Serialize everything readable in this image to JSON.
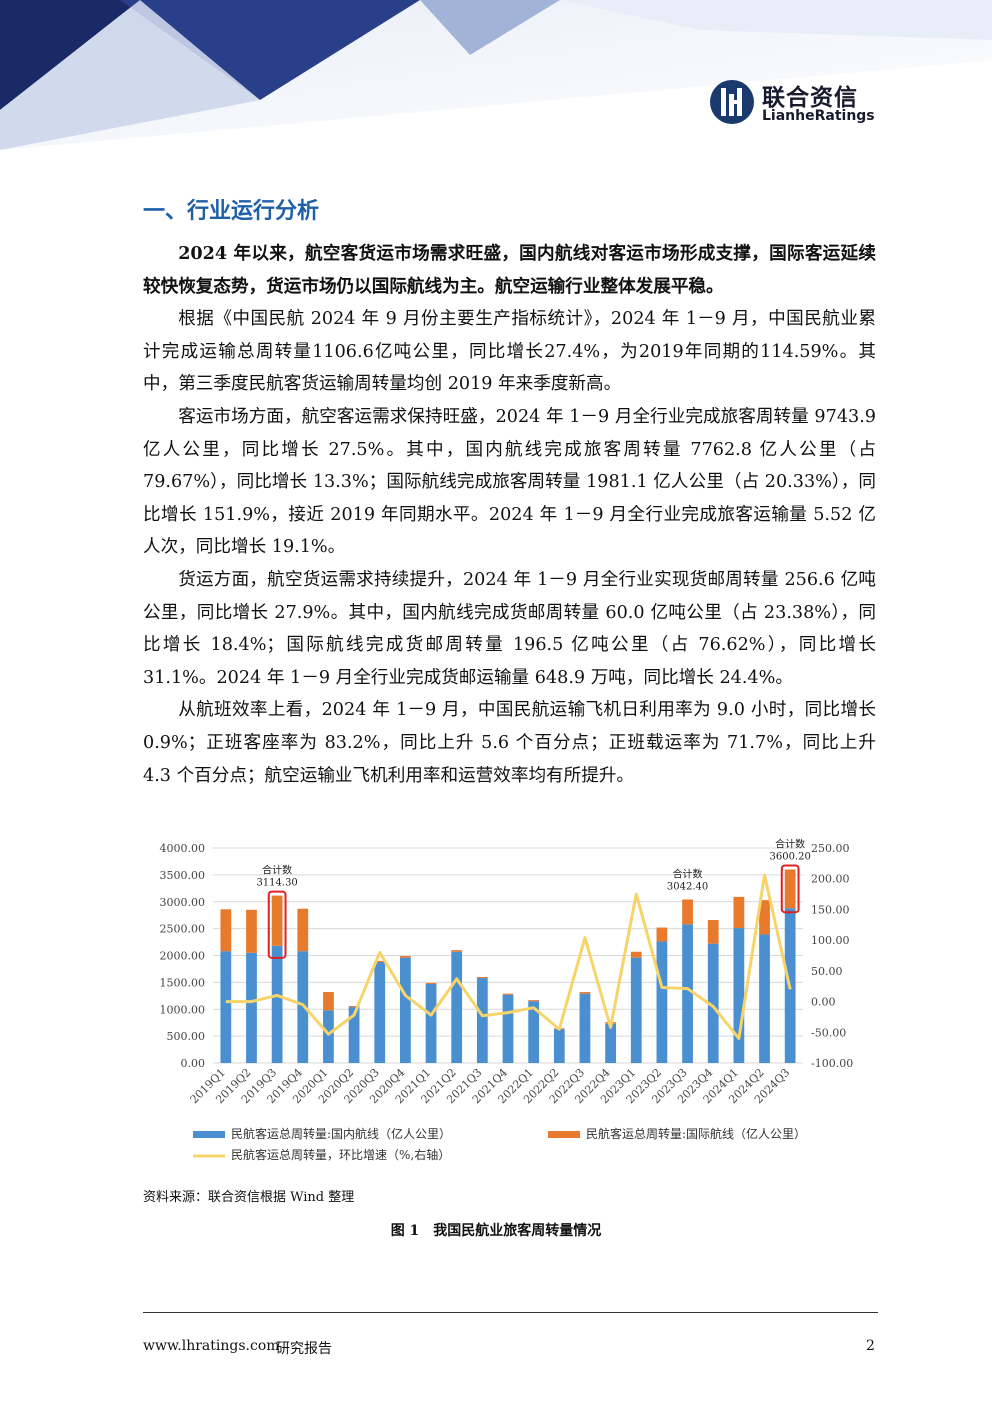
{
  "logo": {
    "name_cn": "联合资信",
    "name_en": "LianheRatings"
  },
  "section_title": "一、行业运行分析",
  "paragraphs": [
    {
      "bold": true,
      "text": "2024 年以来，航空客货运市场需求旺盛，国内航线对客运市场形成支撑，国际客运延续较快恢复态势，货运市场仍以国际航线为主。航空运输行业整体发展平稳。"
    },
    {
      "bold": false,
      "text": "根据《中国民航 2024 年 9 月份主要生产指标统计》，2024 年 1－9 月，中国民航业累计完成运输总周转量1106.6亿吨公里，同比增长27.4%，为2019年同期的114.59%。其中，第三季度民航客货运输周转量均创 2019 年来季度新高。"
    },
    {
      "bold": false,
      "text": "客运市场方面，航空客运需求保持旺盛，2024 年 1－9 月全行业完成旅客周转量 9743.9 亿人公里，同比增长 27.5%。其中，国内航线完成旅客周转量 7762.8 亿人公里（占 79.67%），同比增长 13.3%；国际航线完成旅客周转量 1981.1 亿人公里（占 20.33%），同比增长 151.9%，接近 2019 年同期水平。2024 年 1－9 月全行业完成旅客运输量 5.52 亿人次，同比增长 19.1%。"
    },
    {
      "bold": false,
      "text": "货运方面，航空货运需求持续提升，2024 年 1－9 月全行业实现货邮周转量 256.6 亿吨公里，同比增长 27.9%。其中，国内航线完成货邮周转量 60.0 亿吨公里（占 23.38%），同比增长 18.4%；国际航线完成货邮周转量 196.5 亿吨公里（占 76.62%），同比增长 31.1%。2024 年 1－9 月全行业完成货邮运输量 648.9 万吨，同比增长 24.4%。"
    },
    {
      "bold": false,
      "text": "从航班效率上看，2024 年 1－9 月，中国民航运输飞机日利用率为 9.0 小时，同比增长 0.9%；正班客座率为 83.2%，同比上升 5.6 个百分点；正班载运率为 71.7%，同比上升 4.3 个百分点；航空运输业飞机利用率和运营效率均有所提升。"
    }
  ],
  "chart_data": {
    "type": "bar",
    "stacked": true,
    "categories": [
      "2019Q1",
      "2019Q2",
      "2019Q3",
      "2019Q4",
      "2020Q1",
      "2020Q2",
      "2020Q3",
      "2020Q4",
      "2021Q1",
      "2021Q2",
      "2021Q3",
      "2021Q4",
      "2022Q1",
      "2022Q2",
      "2022Q3",
      "2022Q4",
      "2023Q1",
      "2023Q2",
      "2023Q3",
      "2023Q4",
      "2024Q1",
      "2024Q2",
      "2024Q3"
    ],
    "series": [
      {
        "name": "民航客运总周转量:国内航线（亿人公里）",
        "axis": "left",
        "color": "#4a90d0",
        "values": [
          2080,
          2050,
          2180,
          2080,
          980,
          1040,
          1880,
          1960,
          1470,
          2070,
          1580,
          1270,
          1150,
          630,
          1290,
          730,
          1960,
          2260,
          2580,
          2220,
          2510,
          2390,
          2880
        ]
      },
      {
        "name": "民航客运总周转量:国际航线（亿人公里）",
        "axis": "left",
        "color": "#e87a2e",
        "values": [
          780,
          800,
          934,
          790,
          340,
          20,
          20,
          30,
          20,
          30,
          20,
          20,
          20,
          15,
          30,
          30,
          110,
          260,
          462,
          440,
          580,
          640,
          720
        ]
      },
      {
        "name": "民航客运总周转量，环比增速（%,右轴）",
        "axis": "right",
        "type": "line",
        "color": "#f7d46a",
        "values": [
          0,
          0,
          10,
          -5,
          -53,
          -22,
          80,
          10,
          -22,
          37,
          -23,
          -18,
          -10,
          -45,
          104,
          -42,
          175,
          23,
          21,
          -8,
          -60,
          206,
          20
        ]
      }
    ],
    "annotations": [
      {
        "label": "合计数",
        "value": "3114.30",
        "category": "2019Q3"
      },
      {
        "label": "合计数",
        "value": "3042.40",
        "category": "2023Q3"
      },
      {
        "label": "合计数",
        "value": "3600.20",
        "category": "2024Q3"
      }
    ],
    "highlight_boxes": [
      "2019Q3",
      "2024Q3"
    ],
    "y_left": {
      "min": 0,
      "max": 4000,
      "ticks": [
        "0.00",
        "500.00",
        "1000.00",
        "1500.00",
        "2000.00",
        "2500.00",
        "3000.00",
        "3500.00",
        "4000.00"
      ]
    },
    "y_right": {
      "min": -100,
      "max": 250,
      "ticks": [
        "-100.00",
        "-50.00",
        "0.00",
        "50.00",
        "100.00",
        "150.00",
        "200.00",
        "250.00"
      ]
    },
    "grid": true,
    "legend": "bottom"
  },
  "source_text": "资料来源：联合资信根据 Wind 整理",
  "figure_caption": "图 1　我国民航业旅客周转量情况",
  "footer": {
    "url": "www.lhratings.com",
    "label": "研究报告",
    "page": "2"
  },
  "colors": {
    "brand_blue": "#1f5fa8",
    "logo_navy": "#1a3a6e"
  }
}
